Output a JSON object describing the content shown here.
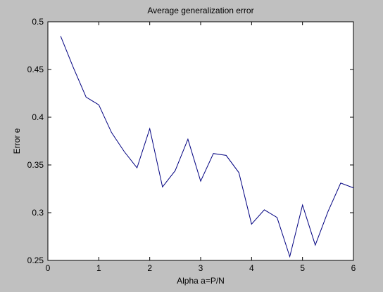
{
  "colors": {
    "figure_background": "#c0c0c0",
    "plot_background": "#ffffff",
    "line": "#000080",
    "axes": "#000000"
  },
  "chart_data": {
    "type": "line",
    "title": "Average generalization error",
    "xlabel": "Alpha a=P/N",
    "ylabel": "Error e",
    "xlim": [
      0,
      6
    ],
    "ylim": [
      0.25,
      0.5
    ],
    "grid": false,
    "x_ticks": [
      "0",
      "1",
      "2",
      "3",
      "4",
      "5",
      "6"
    ],
    "y_ticks": [
      "0.25",
      "0.3",
      "0.35",
      "0.4",
      "0.45",
      "0.5"
    ],
    "series": [
      {
        "x": [
          0.25,
          0.5,
          0.75,
          1.0,
          1.25,
          1.5,
          1.75,
          2.0,
          2.25,
          2.5,
          2.75,
          3.0,
          3.25,
          3.5,
          3.75,
          4.0,
          4.25,
          4.5,
          4.75,
          5.0,
          5.25,
          5.5,
          5.75,
          6.0
        ],
        "values": [
          0.485,
          0.452,
          0.421,
          0.413,
          0.384,
          0.364,
          0.347,
          0.388,
          0.327,
          0.344,
          0.377,
          0.333,
          0.362,
          0.36,
          0.342,
          0.288,
          0.303,
          0.295,
          0.254,
          0.308,
          0.266,
          0.301,
          0.331,
          0.326
        ]
      }
    ]
  }
}
